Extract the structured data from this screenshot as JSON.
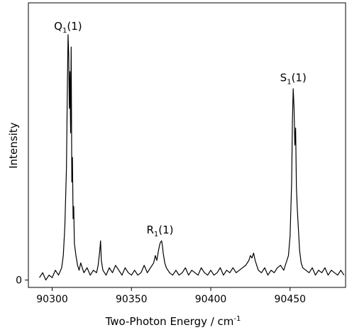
{
  "chart_data": {
    "type": "line",
    "title": "",
    "xlabel": "Two-Photon Energy / cm",
    "xlabel_superscript": "-1",
    "ylabel": "Intensity",
    "xlim": [
      90285,
      90485
    ],
    "ylim": [
      -0.03,
      1.13
    ],
    "x_ticks": [
      {
        "value": 90300,
        "label": "90300"
      },
      {
        "value": 90350,
        "label": "90350"
      },
      {
        "value": 90400,
        "label": "90400"
      },
      {
        "value": 90450,
        "label": "90450"
      }
    ],
    "y_ticks": [
      {
        "value": 0,
        "label": "0"
      }
    ],
    "grid": false,
    "legend": "none",
    "line_color": "#000000",
    "series": [
      {
        "x": [
          90292,
          90294,
          90296,
          90298,
          90300,
          90302,
          90304,
          90306,
          90307,
          90308,
          90309,
          90309.6,
          90310,
          90310.4,
          90310.8,
          90311.2,
          90311.6,
          90312,
          90312.4,
          90312.8,
          90313.2,
          90313.6,
          90314,
          90315,
          90316,
          90317,
          90318,
          90320,
          90322,
          90324,
          90326,
          90328,
          90329,
          90330,
          90330.5,
          90331,
          90332,
          90334,
          90336,
          90338,
          90340,
          90342,
          90344,
          90346,
          90348,
          90350,
          90352,
          90354,
          90356,
          90358,
          90360,
          90362,
          90364,
          90365,
          90366,
          90367,
          90368,
          90369,
          90369.5,
          90370,
          90371,
          90372,
          90374,
          90376,
          90378,
          90380,
          90382,
          90384,
          90386,
          90388,
          90390,
          90392,
          90394,
          90396,
          90398,
          90400,
          90402,
          90404,
          90406,
          90408,
          90410,
          90412,
          90414,
          90416,
          90418,
          90420,
          90422,
          90424,
          90425,
          90426,
          90427,
          90428,
          90429,
          90430,
          90432,
          90434,
          90436,
          90438,
          90440,
          90442,
          90444,
          90446,
          90448,
          90449,
          90450,
          90451,
          90451.5,
          90452,
          90452.5,
          90453,
          90453.5,
          90454,
          90454.5,
          90455,
          90456,
          90457,
          90458,
          90460,
          90462,
          90464,
          90466,
          90468,
          90470,
          90472,
          90474,
          90476,
          90478,
          90480,
          90482,
          90484
        ],
        "y": [
          0.01,
          0.03,
          0.0,
          0.02,
          0.01,
          0.04,
          0.02,
          0.05,
          0.1,
          0.22,
          0.45,
          0.8,
          1.0,
          0.92,
          0.7,
          0.85,
          0.6,
          0.95,
          0.4,
          0.5,
          0.25,
          0.3,
          0.15,
          0.1,
          0.06,
          0.04,
          0.07,
          0.03,
          0.05,
          0.02,
          0.04,
          0.03,
          0.06,
          0.12,
          0.16,
          0.08,
          0.04,
          0.02,
          0.05,
          0.03,
          0.06,
          0.04,
          0.02,
          0.05,
          0.03,
          0.02,
          0.04,
          0.02,
          0.03,
          0.06,
          0.03,
          0.05,
          0.07,
          0.1,
          0.08,
          0.12,
          0.15,
          0.16,
          0.14,
          0.11,
          0.07,
          0.05,
          0.03,
          0.02,
          0.04,
          0.02,
          0.03,
          0.05,
          0.02,
          0.04,
          0.03,
          0.02,
          0.05,
          0.03,
          0.02,
          0.04,
          0.02,
          0.03,
          0.05,
          0.02,
          0.04,
          0.03,
          0.05,
          0.03,
          0.04,
          0.05,
          0.06,
          0.08,
          0.1,
          0.09,
          0.11,
          0.08,
          0.06,
          0.04,
          0.03,
          0.05,
          0.02,
          0.04,
          0.03,
          0.05,
          0.06,
          0.04,
          0.08,
          0.1,
          0.18,
          0.4,
          0.65,
          0.78,
          0.7,
          0.55,
          0.62,
          0.38,
          0.3,
          0.24,
          0.12,
          0.07,
          0.05,
          0.04,
          0.03,
          0.05,
          0.02,
          0.04,
          0.03,
          0.05,
          0.02,
          0.04,
          0.03,
          0.02,
          0.04,
          0.02
        ]
      }
    ],
    "annotations": [
      {
        "letter": "Q",
        "subscript": "1",
        "rest": "(1)",
        "x": 90310,
        "y": 1.02
      },
      {
        "letter": "R",
        "subscript": "1",
        "rest": "(1)",
        "x": 90368,
        "y": 0.19
      },
      {
        "letter": "S",
        "subscript": "1",
        "rest": "(1)",
        "x": 90452,
        "y": 0.81
      }
    ]
  }
}
